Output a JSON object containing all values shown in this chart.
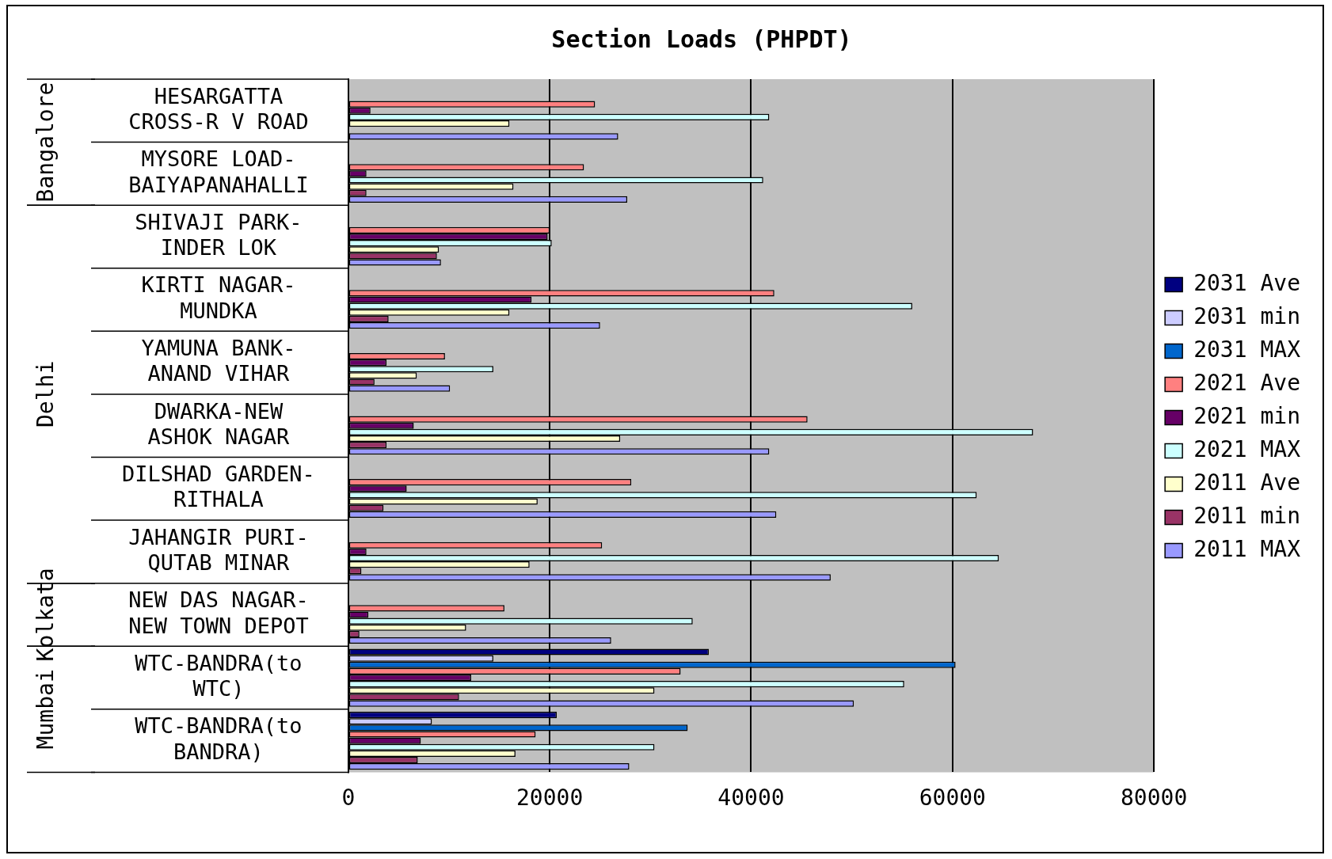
{
  "chart_data": {
    "type": "bar",
    "orientation": "horizontal",
    "title": "Section Loads (PHPDT)",
    "categories": [
      "HESARGATTA CROSS-R V ROAD",
      "MYSORE LOAD-BAIYAPANAHALLI",
      "SHIVAJI PARK-INDER LOK",
      "KIRTI NAGAR-MUNDKA",
      "YAMUNA BANK-ANAND VIHAR",
      "DWARKA-NEW ASHOK NAGAR",
      "DILSHAD GARDEN-RITHALA",
      "JAHANGIR PURI-QUTAB MINAR",
      "NEW DAS NAGAR-NEW TOWN DEPOT",
      "WTC-BANDRA(to WTC)",
      "WTC-BANDRA(to BANDRA)"
    ],
    "series": [
      {
        "name": "2031 Ave",
        "color": "#000080",
        "values": [
          null,
          null,
          null,
          null,
          null,
          null,
          null,
          null,
          null,
          35800,
          20700
        ]
      },
      {
        "name": "2031 min",
        "color": "#ccccff",
        "values": [
          null,
          null,
          null,
          null,
          null,
          null,
          null,
          null,
          null,
          14400,
          8300
        ]
      },
      {
        "name": "2031 MAX",
        "color": "#0066cc",
        "values": [
          null,
          null,
          null,
          null,
          null,
          null,
          null,
          null,
          null,
          60300,
          33700
        ]
      },
      {
        "name": "2021 Ave",
        "color": "#ff8080",
        "values": [
          24500,
          23400,
          20000,
          42300,
          9600,
          45600,
          28100,
          25200,
          15500,
          33000,
          18600
        ]
      },
      {
        "name": "2021 min",
        "color": "#660066",
        "values": [
          2200,
          1800,
          19800,
          18200,
          3800,
          6500,
          5800,
          1800,
          2000,
          12200,
          7200
        ]
      },
      {
        "name": "2021 MAX",
        "color": "#ccffff",
        "values": [
          41800,
          41200,
          20200,
          56000,
          14400,
          68000,
          62400,
          64600,
          34200,
          55200,
          30400
        ]
      },
      {
        "name": "2011 Ave",
        "color": "#ffffcc",
        "values": [
          16000,
          16400,
          9000,
          16000,
          6800,
          27000,
          18800,
          18000,
          11700,
          30400,
          16600
        ]
      },
      {
        "name": "2011 min",
        "color": "#993366",
        "values": [
          null,
          1800,
          8800,
          4000,
          2600,
          3800,
          3500,
          1300,
          1100,
          11000,
          6900
        ]
      },
      {
        "name": "2011 MAX",
        "color": "#9999ff",
        "values": [
          26800,
          27700,
          9200,
          25000,
          10100,
          41800,
          42500,
          47900,
          26100,
          50200,
          27900
        ]
      }
    ],
    "xlim": [
      0,
      80000
    ],
    "xticks": [
      0,
      20000,
      40000,
      60000,
      80000
    ],
    "grid": "x",
    "legend": "right",
    "annotations": [
      "Bangalore",
      "Delhi",
      "Kolkata",
      "Mumbai"
    ]
  }
}
